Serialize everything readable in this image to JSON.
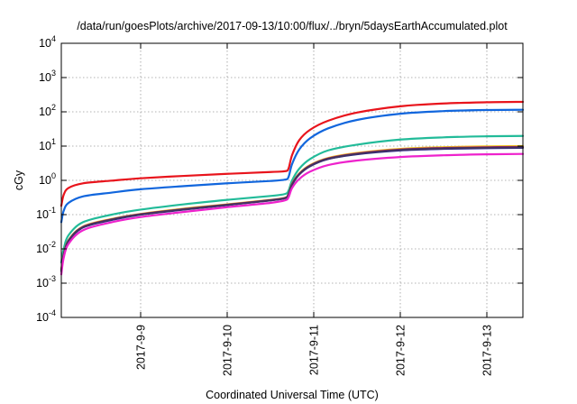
{
  "chart_data": {
    "type": "line",
    "title": "/data/run/goesPlots/archive/2017-09-13/10:00/flux/../bryn/5daysEarthAccumulated.plot",
    "xlabel": "Coordinated Universal Time (UTC)",
    "ylabel": "cGy",
    "yscale": "log",
    "ylim": [
      0.0001,
      10000
    ],
    "xlim": [
      "2017-09-08 02:00",
      "2017-09-13 10:00"
    ],
    "grid": true,
    "legend": "none",
    "x_ticks": [
      {
        "value": "2017-09-09 00:00",
        "label": "2017-9-9"
      },
      {
        "value": "2017-09-10 00:00",
        "label": "2017-9-10"
      },
      {
        "value": "2017-09-11 00:00",
        "label": "2017-9-11"
      },
      {
        "value": "2017-09-12 00:00",
        "label": "2017-9-12"
      },
      {
        "value": "2017-09-13 00:00",
        "label": "2017-9-13"
      }
    ],
    "y_ticks": [
      {
        "exp": "4",
        "value": 10000
      },
      {
        "exp": "3",
        "value": 1000
      },
      {
        "exp": "2",
        "value": 100
      },
      {
        "exp": "1",
        "value": 10
      },
      {
        "exp": "0",
        "value": 1
      },
      {
        "exp": "-1",
        "value": 0.1
      },
      {
        "exp": "-2",
        "value": 0.01
      },
      {
        "exp": "-3",
        "value": 0.001
      },
      {
        "exp": "-4",
        "value": 0.0001
      }
    ],
    "series": [
      {
        "color": "#e8141c",
        "points": [
          [
            "2017-09-08 02:00",
            0.18
          ],
          [
            "2017-09-08 02:40",
            0.38
          ],
          [
            "2017-09-08 04:00",
            0.6
          ],
          [
            "2017-09-08 08:00",
            0.82
          ],
          [
            "2017-09-08 16:00",
            0.98
          ],
          [
            "2017-09-09 00:00",
            1.15
          ],
          [
            "2017-09-09 12:00",
            1.35
          ],
          [
            "2017-09-10 00:00",
            1.55
          ],
          [
            "2017-09-10 12:00",
            1.75
          ],
          [
            "2017-09-10 16:00",
            1.85
          ],
          [
            "2017-09-10 17:00",
            2.2
          ],
          [
            "2017-09-10 18:00",
            5.5
          ],
          [
            "2017-09-10 20:00",
            15
          ],
          [
            "2017-09-10 23:00",
            30
          ],
          [
            "2017-09-11 04:00",
            55
          ],
          [
            "2017-09-11 12:00",
            95
          ],
          [
            "2017-09-12 00:00",
            145
          ],
          [
            "2017-09-12 12:00",
            175
          ],
          [
            "2017-09-13 00:00",
            190
          ],
          [
            "2017-09-13 10:00",
            195
          ]
        ]
      },
      {
        "color": "#1166dd",
        "points": [
          [
            "2017-09-08 02:00",
            0.06
          ],
          [
            "2017-09-08 02:40",
            0.13
          ],
          [
            "2017-09-08 04:00",
            0.22
          ],
          [
            "2017-09-08 08:00",
            0.34
          ],
          [
            "2017-09-08 16:00",
            0.44
          ],
          [
            "2017-09-09 00:00",
            0.55
          ],
          [
            "2017-09-09 12:00",
            0.68
          ],
          [
            "2017-09-10 00:00",
            0.82
          ],
          [
            "2017-09-10 12:00",
            0.96
          ],
          [
            "2017-09-10 16:00",
            1.05
          ],
          [
            "2017-09-10 17:00",
            1.25
          ],
          [
            "2017-09-10 18:00",
            3
          ],
          [
            "2017-09-10 20:00",
            8
          ],
          [
            "2017-09-10 23:00",
            17
          ],
          [
            "2017-09-11 04:00",
            33
          ],
          [
            "2017-09-11 12:00",
            58
          ],
          [
            "2017-09-12 00:00",
            88
          ],
          [
            "2017-09-12 12:00",
            105
          ],
          [
            "2017-09-13 00:00",
            113
          ],
          [
            "2017-09-13 10:00",
            115
          ]
        ]
      },
      {
        "color": "#22bb99",
        "points": [
          [
            "2017-09-08 02:00",
            0.004
          ],
          [
            "2017-09-08 02:40",
            0.01
          ],
          [
            "2017-09-08 04:00",
            0.025
          ],
          [
            "2017-09-08 08:00",
            0.06
          ],
          [
            "2017-09-08 16:00",
            0.1
          ],
          [
            "2017-09-09 00:00",
            0.14
          ],
          [
            "2017-09-09 12:00",
            0.2
          ],
          [
            "2017-09-10 00:00",
            0.27
          ],
          [
            "2017-09-10 12:00",
            0.35
          ],
          [
            "2017-09-10 16:00",
            0.4
          ],
          [
            "2017-09-10 17:00",
            0.5
          ],
          [
            "2017-09-10 18:00",
            1.0
          ],
          [
            "2017-09-10 20:00",
            2.2
          ],
          [
            "2017-09-10 23:00",
            4.2
          ],
          [
            "2017-09-11 04:00",
            7.5
          ],
          [
            "2017-09-11 12:00",
            11
          ],
          [
            "2017-09-12 00:00",
            15.5
          ],
          [
            "2017-09-12 12:00",
            18
          ],
          [
            "2017-09-13 00:00",
            19.3
          ],
          [
            "2017-09-13 10:00",
            19.8
          ]
        ]
      },
      {
        "color": "#f0c419",
        "points": [
          [
            "2017-09-08 02:00",
            0.0025
          ],
          [
            "2017-09-08 02:40",
            0.007
          ],
          [
            "2017-09-08 04:00",
            0.018
          ],
          [
            "2017-09-08 08:00",
            0.045
          ],
          [
            "2017-09-08 16:00",
            0.075
          ],
          [
            "2017-09-09 00:00",
            0.105
          ],
          [
            "2017-09-09 12:00",
            0.15
          ],
          [
            "2017-09-10 00:00",
            0.2
          ],
          [
            "2017-09-10 12:00",
            0.27
          ],
          [
            "2017-09-10 16:00",
            0.31
          ],
          [
            "2017-09-10 17:00",
            0.4
          ],
          [
            "2017-09-10 18:00",
            0.8
          ],
          [
            "2017-09-10 20:00",
            1.6
          ],
          [
            "2017-09-10 23:00",
            2.8
          ],
          [
            "2017-09-11 04:00",
            4.5
          ],
          [
            "2017-09-11 12:00",
            6.3
          ],
          [
            "2017-09-12 00:00",
            8.3
          ],
          [
            "2017-09-12 12:00",
            9.3
          ],
          [
            "2017-09-13 00:00",
            9.8
          ],
          [
            "2017-09-13 10:00",
            10
          ]
        ]
      },
      {
        "color": "#1a1a9e",
        "points": [
          [
            "2017-09-08 02:00",
            0.0022
          ],
          [
            "2017-09-08 02:40",
            0.0065
          ],
          [
            "2017-09-08 04:00",
            0.017
          ],
          [
            "2017-09-08 08:00",
            0.042
          ],
          [
            "2017-09-08 16:00",
            0.07
          ],
          [
            "2017-09-09 00:00",
            0.1
          ],
          [
            "2017-09-09 12:00",
            0.14
          ],
          [
            "2017-09-10 00:00",
            0.19
          ],
          [
            "2017-09-10 12:00",
            0.26
          ],
          [
            "2017-09-10 16:00",
            0.3
          ],
          [
            "2017-09-10 17:00",
            0.38
          ],
          [
            "2017-09-10 18:00",
            0.75
          ],
          [
            "2017-09-10 20:00",
            1.5
          ],
          [
            "2017-09-10 23:00",
            2.6
          ],
          [
            "2017-09-11 04:00",
            4.2
          ],
          [
            "2017-09-11 12:00",
            5.8
          ],
          [
            "2017-09-12 00:00",
            7.5
          ],
          [
            "2017-09-12 12:00",
            8.3
          ],
          [
            "2017-09-13 00:00",
            8.7
          ],
          [
            "2017-09-13 10:00",
            8.9
          ]
        ]
      },
      {
        "color": "#b01e6e",
        "points": [
          [
            "2017-09-08 02:00",
            0.0024
          ],
          [
            "2017-09-08 02:40",
            0.0068
          ],
          [
            "2017-09-08 04:00",
            0.0175
          ],
          [
            "2017-09-08 08:00",
            0.044
          ],
          [
            "2017-09-08 16:00",
            0.073
          ],
          [
            "2017-09-09 00:00",
            0.103
          ],
          [
            "2017-09-09 12:00",
            0.145
          ],
          [
            "2017-09-10 00:00",
            0.195
          ],
          [
            "2017-09-10 12:00",
            0.265
          ],
          [
            "2017-09-10 16:00",
            0.305
          ],
          [
            "2017-09-10 17:00",
            0.39
          ],
          [
            "2017-09-10 18:00",
            0.78
          ],
          [
            "2017-09-10 20:00",
            1.55
          ],
          [
            "2017-09-10 23:00",
            2.7
          ],
          [
            "2017-09-11 04:00",
            4.35
          ],
          [
            "2017-09-11 12:00",
            6.05
          ],
          [
            "2017-09-12 00:00",
            7.9
          ],
          [
            "2017-09-12 12:00",
            8.8
          ],
          [
            "2017-09-13 00:00",
            9.25
          ],
          [
            "2017-09-13 10:00",
            9.45
          ]
        ]
      },
      {
        "color": "#44335f",
        "points": [
          [
            "2017-09-08 02:00",
            0.0023
          ],
          [
            "2017-09-08 02:40",
            0.0066
          ],
          [
            "2017-09-08 04:00",
            0.0172
          ],
          [
            "2017-09-08 08:00",
            0.043
          ],
          [
            "2017-09-08 16:00",
            0.072
          ],
          [
            "2017-09-09 00:00",
            0.101
          ],
          [
            "2017-09-09 12:00",
            0.143
          ],
          [
            "2017-09-10 00:00",
            0.192
          ],
          [
            "2017-09-10 12:00",
            0.262
          ],
          [
            "2017-09-10 16:00",
            0.302
          ],
          [
            "2017-09-10 17:00",
            0.385
          ],
          [
            "2017-09-10 18:00",
            0.76
          ],
          [
            "2017-09-10 20:00",
            1.52
          ],
          [
            "2017-09-10 23:00",
            2.65
          ],
          [
            "2017-09-11 04:00",
            4.25
          ],
          [
            "2017-09-11 12:00",
            5.9
          ],
          [
            "2017-09-12 00:00",
            7.7
          ],
          [
            "2017-09-12 12:00",
            8.55
          ],
          [
            "2017-09-13 00:00",
            8.95
          ],
          [
            "2017-09-13 10:00",
            9.15
          ]
        ]
      },
      {
        "color": "#ee22cc",
        "points": [
          [
            "2017-09-08 02:00",
            0.0018
          ],
          [
            "2017-09-08 02:40",
            0.0055
          ],
          [
            "2017-09-08 04:00",
            0.014
          ],
          [
            "2017-09-08 08:00",
            0.035
          ],
          [
            "2017-09-08 16:00",
            0.06
          ],
          [
            "2017-09-09 00:00",
            0.085
          ],
          [
            "2017-09-09 12:00",
            0.12
          ],
          [
            "2017-09-10 00:00",
            0.165
          ],
          [
            "2017-09-10 12:00",
            0.22
          ],
          [
            "2017-09-10 16:00",
            0.26
          ],
          [
            "2017-09-10 17:00",
            0.32
          ],
          [
            "2017-09-10 18:00",
            0.6
          ],
          [
            "2017-09-10 20:00",
            1.1
          ],
          [
            "2017-09-10 23:00",
            1.8
          ],
          [
            "2017-09-11 04:00",
            2.8
          ],
          [
            "2017-09-11 12:00",
            3.8
          ],
          [
            "2017-09-12 00:00",
            4.8
          ],
          [
            "2017-09-12 12:00",
            5.4
          ],
          [
            "2017-09-13 00:00",
            5.75
          ],
          [
            "2017-09-13 10:00",
            5.9
          ]
        ]
      }
    ]
  }
}
